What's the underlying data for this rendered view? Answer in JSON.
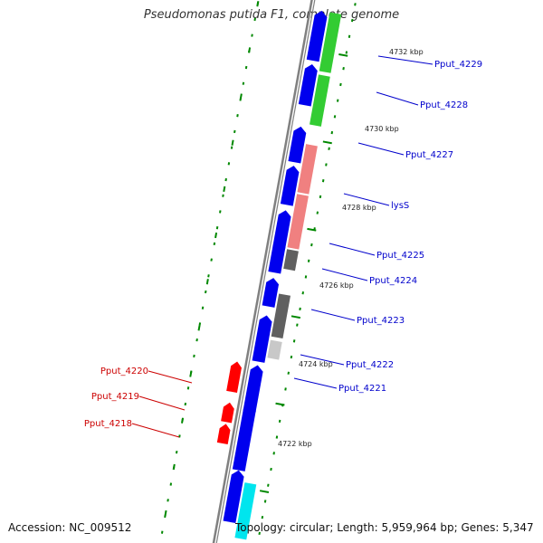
{
  "title": "Pseudomonas putida F1, complete genome",
  "footer": {
    "accession": "Accession: NC_009512",
    "summary": "Topology: circular; Length: 5,959,964 bp; Genes: 5,347"
  },
  "colors": {
    "backbone": "#808080",
    "tick": "#008800",
    "label_blue": "#0000cc",
    "label_red": "#cc0000",
    "cds_blue": "#0000ee",
    "cds_red": "#ff0000",
    "green": "#33cc33",
    "salmon": "#f08080",
    "dark_gray": "#606060",
    "light_gray": "#c8c8c8",
    "cyan": "#00e5ee"
  },
  "scale_labels": [
    "4732 kbp",
    "4730 kbp",
    "4728 kbp",
    "4726 kbp",
    "4724 kbp",
    "4722 kbp"
  ],
  "genes": [
    {
      "label": "Pput_4229",
      "strand": "plus",
      "color": "label_blue"
    },
    {
      "label": "Pput_4228",
      "strand": "plus",
      "color": "label_blue"
    },
    {
      "label": "Pput_4227",
      "strand": "plus",
      "color": "label_blue"
    },
    {
      "label": "lysS",
      "strand": "plus",
      "color": "label_blue"
    },
    {
      "label": "Pput_4225",
      "strand": "plus",
      "color": "label_blue"
    },
    {
      "label": "Pput_4224",
      "strand": "plus",
      "color": "label_blue"
    },
    {
      "label": "Pput_4223",
      "strand": "plus",
      "color": "label_blue"
    },
    {
      "label": "Pput_4222",
      "strand": "plus",
      "color": "label_blue"
    },
    {
      "label": "Pput_4221",
      "strand": "plus",
      "color": "label_blue"
    },
    {
      "label": "Pput_4220",
      "strand": "minus",
      "color": "label_red"
    },
    {
      "label": "Pput_4219",
      "strand": "minus",
      "color": "label_red"
    },
    {
      "label": "Pput_4218",
      "strand": "minus",
      "color": "label_red"
    }
  ]
}
